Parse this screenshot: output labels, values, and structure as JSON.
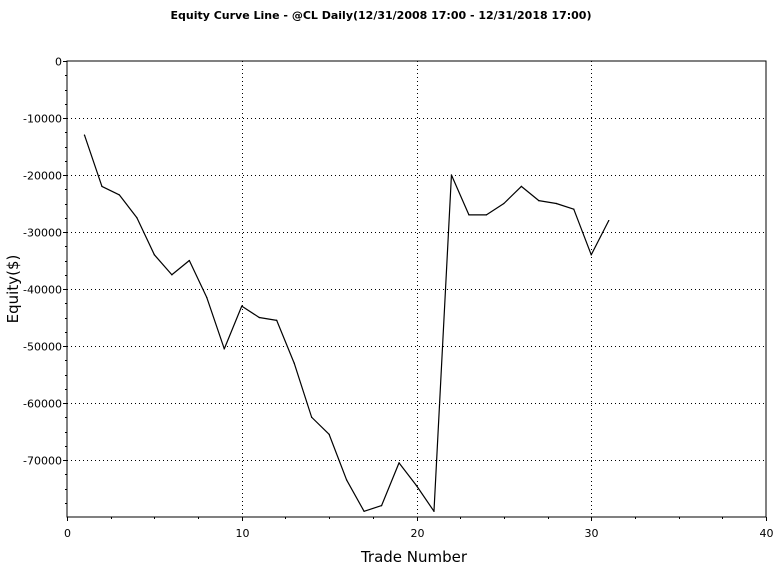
{
  "chart_data": {
    "type": "line",
    "title": "Equity Curve Line - @CL Daily(12/31/2008 17:00 - 12/31/2018 17:00)",
    "xlabel": "Trade Number",
    "ylabel": "Equity($)",
    "xlim": [
      0,
      40
    ],
    "ylim": [
      -80000,
      0
    ],
    "xticks": [
      "0",
      "10",
      "20",
      "30",
      "40"
    ],
    "xtick_values": [
      0,
      10,
      20,
      30,
      40
    ],
    "yticks": [
      "0",
      "-10000",
      "-20000",
      "-30000",
      "-40000",
      "-50000",
      "-60000",
      "-70000"
    ],
    "ytick_values": [
      0,
      -10000,
      -20000,
      -30000,
      -40000,
      -50000,
      -60000,
      -70000
    ],
    "grid": true,
    "line_color": "#000000",
    "grid_color": "#000000",
    "series": [
      {
        "x": [
          1,
          2,
          3,
          4,
          5,
          6,
          7,
          8,
          9,
          10,
          11,
          12,
          13,
          14,
          15,
          16,
          17,
          18,
          19,
          20,
          21,
          22,
          23,
          24,
          25,
          26,
          27,
          28,
          29,
          30,
          31
        ],
        "values": [
          -13000,
          -22000,
          -23500,
          -27500,
          -34000,
          -37500,
          -35000,
          -41500,
          -50500,
          -43000,
          -45000,
          -45500,
          -53000,
          -62500,
          -65500,
          -73500,
          -79000,
          -78000,
          -70500,
          -74500,
          -79000,
          -20000,
          -27000,
          -27000,
          -25000,
          -22000,
          -24500,
          -25000,
          -26000,
          -34000,
          -28000
        ]
      }
    ]
  }
}
